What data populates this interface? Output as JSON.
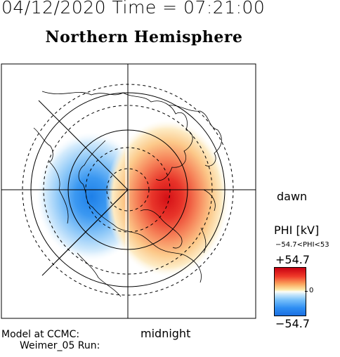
{
  "header": {
    "datetime": "04/12/2020 Time = 07:21:00",
    "title": "Northern Hemisphere"
  },
  "labels": {
    "dawn": "dawn",
    "midnight": "midnight",
    "model_line1": "Model at CCMC:",
    "model_line2": "Weimer_05 Run:"
  },
  "colorbar": {
    "title": "PHI [kV]",
    "range_text": "−54.7<PHI<53",
    "max_label": "+54.7",
    "zero_label": "0",
    "min_label": "−54.7",
    "max_color": "#c80010",
    "zero_color": "#fdfdf6",
    "min_color": "#1b6fe0"
  },
  "map": {
    "projection": "polar stereographic, north pole centered",
    "field": "electric potential PHI",
    "positive_cell_color": "#d81e1e",
    "negative_cell_color": "#2f8ff2"
  }
}
